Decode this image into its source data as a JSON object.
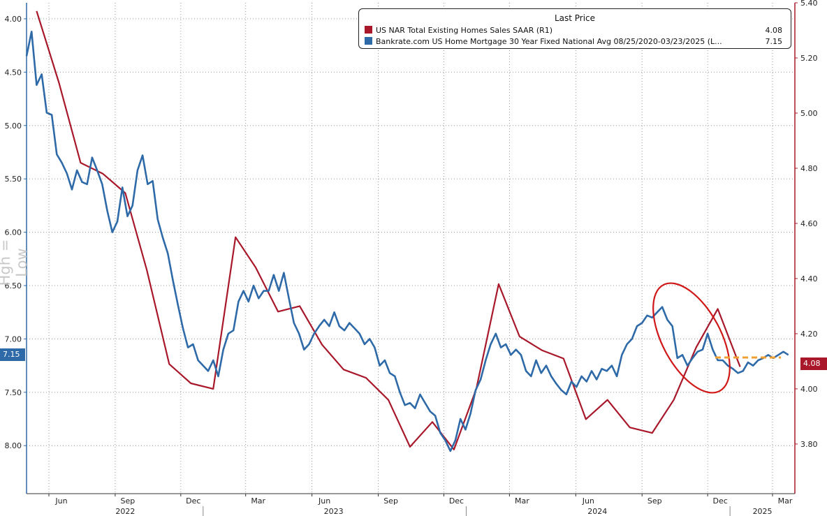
{
  "colors": {
    "mortgage": "#2e6aa8",
    "sales": "#a8182a",
    "highlight_ellipse": "#d01818",
    "dashed_level": "#f0a030",
    "grid": "#999999"
  },
  "side_title": "Hgh = Low",
  "legend": {
    "heading": "Last Price",
    "items": [
      {
        "label": "US NAR Total Existing Homes Sales SAAR  (R1)",
        "value": "4.08",
        "color": "#a8182a"
      },
      {
        "label": "Bankrate.com US Home Mortgage 30 Year Fixed National Avg 08/25/2020-03/23/2025   (L...",
        "value": "7.15",
        "color": "#2e6aa8"
      }
    ]
  },
  "last_tags": {
    "left": "7.15",
    "right": "4.08"
  },
  "chart_data": {
    "type": "line",
    "x_axis": {
      "months": [
        "Jun",
        "Sep",
        "Dec",
        "Mar",
        "Jun",
        "Sep",
        "Dec",
        "Mar",
        "Jun",
        "Sep",
        "Dec",
        "Mar"
      ],
      "years": [
        "2022",
        "2023",
        "2024",
        "2025"
      ],
      "range": [
        "2022-05",
        "2025-04"
      ]
    },
    "left_axis": {
      "inverted": true,
      "range": [
        3.85,
        8.45
      ],
      "ticks": [
        "4.00",
        "4.50",
        "5.00",
        "5.50",
        "6.00",
        "6.50",
        "7.00",
        "7.50",
        "8.00"
      ]
    },
    "right_axis": {
      "range": [
        3.62,
        5.4
      ],
      "ticks": [
        "3.80",
        "4.00",
        "4.20",
        "4.40",
        "4.60",
        "4.80",
        "5.00",
        "5.20",
        "5.40"
      ]
    },
    "grid": true,
    "legend_position": "top-right",
    "series": [
      {
        "name": "US NAR Total Existing Homes Sales SAAR  (R1)",
        "axis": "right",
        "points": [
          [
            "2022-05",
            5.37
          ],
          [
            "2022-06",
            5.11
          ],
          [
            "2022-07",
            4.82
          ],
          [
            "2022-08",
            4.78
          ],
          [
            "2022-09",
            4.71
          ],
          [
            "2022-10",
            4.43
          ],
          [
            "2022-11",
            4.09
          ],
          [
            "2022-12",
            4.02
          ],
          [
            "2023-01",
            4.0
          ],
          [
            "2023-02",
            4.55
          ],
          [
            "2023-03",
            4.44
          ],
          [
            "2023-04",
            4.28
          ],
          [
            "2023-05",
            4.3
          ],
          [
            "2023-06",
            4.16
          ],
          [
            "2023-07",
            4.07
          ],
          [
            "2023-08",
            4.04
          ],
          [
            "2023-09",
            3.96
          ],
          [
            "2023-10",
            3.79
          ],
          [
            "2023-11",
            3.88
          ],
          [
            "2023-12",
            3.78
          ],
          [
            "2024-01",
            4.0
          ],
          [
            "2024-02",
            4.38
          ],
          [
            "2024-03",
            4.19
          ],
          [
            "2024-04",
            4.14
          ],
          [
            "2024-05",
            4.11
          ],
          [
            "2024-06",
            3.89
          ],
          [
            "2024-07",
            3.96
          ],
          [
            "2024-08",
            3.86
          ],
          [
            "2024-09",
            3.84
          ],
          [
            "2024-10",
            3.96
          ],
          [
            "2024-11",
            4.15
          ],
          [
            "2024-12",
            4.29
          ],
          [
            "2025-01",
            4.08
          ]
        ]
      },
      {
        "name": "Bankrate.com US Home Mortgage 30 Year Fixed National Avg 08/25/2020-03/23/2025   (L...",
        "axis": "left",
        "points": [
          [
            "2022-05-01",
            4.35
          ],
          [
            "2022-05-08",
            4.12
          ],
          [
            "2022-05-15",
            4.62
          ],
          [
            "2022-05-22",
            4.52
          ],
          [
            "2022-05-29",
            4.88
          ],
          [
            "2022-06-05",
            4.9
          ],
          [
            "2022-06-12",
            5.27
          ],
          [
            "2022-06-19",
            5.35
          ],
          [
            "2022-06-26",
            5.45
          ],
          [
            "2022-07-03",
            5.6
          ],
          [
            "2022-07-10",
            5.42
          ],
          [
            "2022-07-17",
            5.53
          ],
          [
            "2022-07-24",
            5.55
          ],
          [
            "2022-07-31",
            5.3
          ],
          [
            "2022-08-07",
            5.42
          ],
          [
            "2022-08-14",
            5.55
          ],
          [
            "2022-08-21",
            5.8
          ],
          [
            "2022-08-28",
            6.0
          ],
          [
            "2022-09-04",
            5.9
          ],
          [
            "2022-09-11",
            5.58
          ],
          [
            "2022-09-18",
            5.85
          ],
          [
            "2022-09-25",
            5.75
          ],
          [
            "2022-10-02",
            5.42
          ],
          [
            "2022-10-09",
            5.28
          ],
          [
            "2022-10-16",
            5.55
          ],
          [
            "2022-10-23",
            5.52
          ],
          [
            "2022-10-30",
            5.88
          ],
          [
            "2022-11-06",
            6.05
          ],
          [
            "2022-11-13",
            6.2
          ],
          [
            "2022-11-20",
            6.45
          ],
          [
            "2022-11-27",
            6.68
          ],
          [
            "2022-12-04",
            6.9
          ],
          [
            "2022-12-11",
            7.08
          ],
          [
            "2022-12-18",
            7.05
          ],
          [
            "2022-12-25",
            7.2
          ],
          [
            "2023-01-01",
            7.25
          ],
          [
            "2023-01-08",
            7.3
          ],
          [
            "2023-01-15",
            7.2
          ],
          [
            "2023-01-22",
            7.35
          ],
          [
            "2023-01-29",
            7.1
          ],
          [
            "2023-02-05",
            6.95
          ],
          [
            "2023-02-12",
            6.92
          ],
          [
            "2023-02-19",
            6.65
          ],
          [
            "2023-02-26",
            6.55
          ],
          [
            "2023-03-05",
            6.65
          ],
          [
            "2023-03-12",
            6.5
          ],
          [
            "2023-03-19",
            6.62
          ],
          [
            "2023-03-26",
            6.55
          ],
          [
            "2023-04-02",
            6.55
          ],
          [
            "2023-04-09",
            6.4
          ],
          [
            "2023-04-16",
            6.55
          ],
          [
            "2023-04-23",
            6.38
          ],
          [
            "2023-04-30",
            6.62
          ],
          [
            "2023-05-07",
            6.85
          ],
          [
            "2023-05-14",
            6.95
          ],
          [
            "2023-05-21",
            7.1
          ],
          [
            "2023-05-28",
            7.05
          ],
          [
            "2023-06-04",
            6.95
          ],
          [
            "2023-06-11",
            6.88
          ],
          [
            "2023-06-18",
            6.82
          ],
          [
            "2023-06-25",
            6.88
          ],
          [
            "2023-07-02",
            6.75
          ],
          [
            "2023-07-09",
            6.88
          ],
          [
            "2023-07-16",
            6.92
          ],
          [
            "2023-07-23",
            6.85
          ],
          [
            "2023-07-30",
            6.9
          ],
          [
            "2023-08-06",
            6.95
          ],
          [
            "2023-08-13",
            7.05
          ],
          [
            "2023-08-20",
            7.0
          ],
          [
            "2023-08-27",
            7.08
          ],
          [
            "2023-09-03",
            7.25
          ],
          [
            "2023-09-10",
            7.2
          ],
          [
            "2023-09-17",
            7.32
          ],
          [
            "2023-09-24",
            7.35
          ],
          [
            "2023-10-01",
            7.5
          ],
          [
            "2023-10-08",
            7.62
          ],
          [
            "2023-10-15",
            7.6
          ],
          [
            "2023-10-22",
            7.65
          ],
          [
            "2023-10-29",
            7.52
          ],
          [
            "2023-11-05",
            7.6
          ],
          [
            "2023-11-12",
            7.68
          ],
          [
            "2023-11-19",
            7.72
          ],
          [
            "2023-11-26",
            7.88
          ],
          [
            "2023-12-03",
            7.95
          ],
          [
            "2023-12-10",
            8.05
          ],
          [
            "2023-12-17",
            7.95
          ],
          [
            "2023-12-24",
            7.75
          ],
          [
            "2023-12-31",
            7.85
          ],
          [
            "2024-01-07",
            7.7
          ],
          [
            "2024-01-14",
            7.48
          ],
          [
            "2024-01-21",
            7.38
          ],
          [
            "2024-01-28",
            7.2
          ],
          [
            "2024-02-04",
            7.05
          ],
          [
            "2024-02-11",
            6.95
          ],
          [
            "2024-02-18",
            7.08
          ],
          [
            "2024-02-25",
            7.05
          ],
          [
            "2024-03-03",
            7.15
          ],
          [
            "2024-03-10",
            7.1
          ],
          [
            "2024-03-17",
            7.15
          ],
          [
            "2024-03-24",
            7.3
          ],
          [
            "2024-03-31",
            7.35
          ],
          [
            "2024-04-07",
            7.2
          ],
          [
            "2024-04-14",
            7.32
          ],
          [
            "2024-04-21",
            7.25
          ],
          [
            "2024-04-28",
            7.35
          ],
          [
            "2024-05-05",
            7.42
          ],
          [
            "2024-05-12",
            7.48
          ],
          [
            "2024-05-19",
            7.52
          ],
          [
            "2024-05-26",
            7.4
          ],
          [
            "2024-06-02",
            7.45
          ],
          [
            "2024-06-09",
            7.35
          ],
          [
            "2024-06-16",
            7.4
          ],
          [
            "2024-06-23",
            7.3
          ],
          [
            "2024-06-30",
            7.38
          ],
          [
            "2024-07-07",
            7.28
          ],
          [
            "2024-07-14",
            7.3
          ],
          [
            "2024-07-21",
            7.25
          ],
          [
            "2024-07-28",
            7.35
          ],
          [
            "2024-08-04",
            7.15
          ],
          [
            "2024-08-11",
            7.05
          ],
          [
            "2024-08-18",
            7.0
          ],
          [
            "2024-08-25",
            6.88
          ],
          [
            "2024-09-01",
            6.85
          ],
          [
            "2024-09-08",
            6.78
          ],
          [
            "2024-09-15",
            6.8
          ],
          [
            "2024-09-22",
            6.75
          ],
          [
            "2024-09-29",
            6.7
          ],
          [
            "2024-10-06",
            6.82
          ],
          [
            "2024-10-13",
            6.88
          ],
          [
            "2024-10-20",
            7.18
          ],
          [
            "2024-10-27",
            7.15
          ],
          [
            "2024-11-03",
            7.25
          ],
          [
            "2024-11-10",
            7.18
          ],
          [
            "2024-11-17",
            7.12
          ],
          [
            "2024-11-24",
            7.1
          ],
          [
            "2024-12-01",
            6.95
          ],
          [
            "2024-12-08",
            7.1
          ],
          [
            "2024-12-15",
            7.2
          ],
          [
            "2024-12-22",
            7.2
          ],
          [
            "2024-12-29",
            7.25
          ],
          [
            "2025-01-05",
            7.28
          ],
          [
            "2025-01-12",
            7.32
          ],
          [
            "2025-01-19",
            7.3
          ],
          [
            "2025-01-26",
            7.22
          ],
          [
            "2025-02-02",
            7.25
          ],
          [
            "2025-02-09",
            7.2
          ],
          [
            "2025-02-16",
            7.18
          ],
          [
            "2025-02-23",
            7.15
          ],
          [
            "2025-03-02",
            7.18
          ],
          [
            "2025-03-09",
            7.15
          ],
          [
            "2025-03-16",
            7.12
          ],
          [
            "2025-03-23",
            7.15
          ]
        ]
      }
    ]
  }
}
